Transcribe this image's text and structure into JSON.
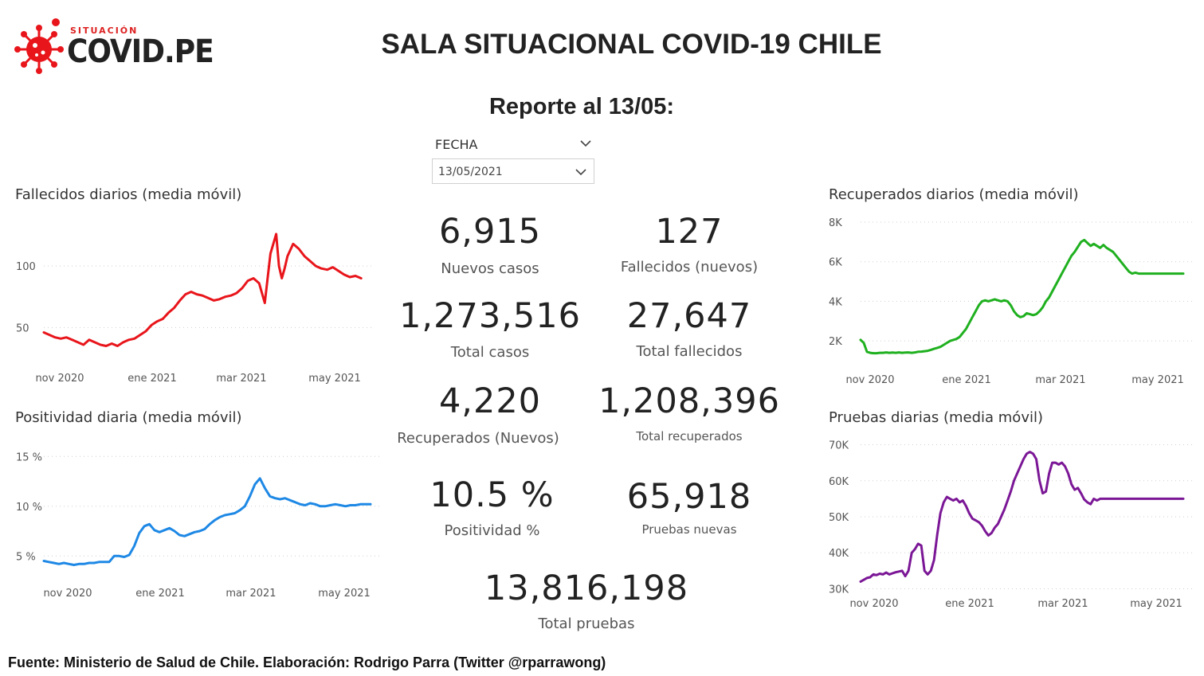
{
  "header": {
    "logo_small": "SITUACIÓN",
    "logo_big": "COVID.PE",
    "title": "SALA SITUACIONAL COVID-19 CHILE",
    "report": "Reporte al 13/05:"
  },
  "slicer": {
    "label": "FECHA",
    "value": "13/05/2021"
  },
  "kpis": {
    "nuevos_casos": {
      "value": "6,915",
      "label": "Nuevos casos"
    },
    "fallecidos_nuevos": {
      "value": "127",
      "label": "Fallecidos (nuevos)"
    },
    "total_casos": {
      "value": "1,273,516",
      "label": "Total casos"
    },
    "total_fallecidos": {
      "value": "27,647",
      "label": "Total fallecidos"
    },
    "recuperados_nuevos": {
      "value": "4,220",
      "label": "Recuperados (Nuevos)"
    },
    "total_recuperados": {
      "value": "1,208,396",
      "label": "Total recuperados"
    },
    "positividad": {
      "value": "10.5 %",
      "label": "Positividad %"
    },
    "pruebas_nuevas": {
      "value": "65,918",
      "label": "Pruebas nuevas"
    },
    "total_pruebas": {
      "value": "13,816,198",
      "label": "Total pruebas"
    }
  },
  "footer": "Fuente: Ministerio de Salud de Chile. Elaboración: Rodrigo Parra (Twitter @rparrawong)",
  "chart_data": [
    {
      "id": "fallecidos",
      "type": "line",
      "title": "Fallecidos diarios (media móvil)",
      "color": "#e8151b",
      "xticks": [
        "nov 2020",
        "ene 2021",
        "mar 2021",
        "may 2021"
      ],
      "yticks": [
        "100",
        "50"
      ],
      "ytick_values": [
        100,
        50
      ],
      "ylim": [
        25,
        135
      ],
      "x": [
        0,
        4,
        8,
        12,
        16,
        20,
        24,
        28,
        32,
        36,
        40,
        44,
        48,
        52,
        56,
        60,
        64,
        68,
        72,
        76,
        80,
        84,
        88,
        92,
        96,
        100,
        104,
        108,
        112,
        116,
        120,
        124,
        128,
        132,
        136,
        140,
        144,
        148,
        152,
        156,
        160,
        164,
        166,
        168,
        170,
        172,
        176,
        180,
        184,
        188,
        192,
        196,
        200,
        204,
        208,
        212,
        216,
        220,
        224
      ],
      "y": [
        46,
        44,
        42,
        41,
        42,
        40,
        38,
        36,
        40,
        38,
        36,
        35,
        37,
        35,
        38,
        40,
        41,
        44,
        47,
        52,
        55,
        57,
        62,
        66,
        72,
        77,
        79,
        77,
        76,
        74,
        72,
        73,
        75,
        76,
        78,
        82,
        88,
        90,
        86,
        70,
        110,
        126,
        100,
        90,
        98,
        108,
        118,
        114,
        108,
        104,
        100,
        98,
        97,
        99,
        96,
        93,
        91,
        92,
        90
      ]
    },
    {
      "id": "positividad",
      "type": "line",
      "title": "Positividad diaria (media móvil)",
      "color": "#1e88e5",
      "xticks": [
        "nov 2020",
        "ene 2021",
        "mar 2021",
        "may 2021"
      ],
      "yticks": [
        "15 %",
        "10 %",
        "5 %"
      ],
      "ytick_values": [
        15,
        10,
        5
      ],
      "ylim": [
        3.5,
        15.5
      ],
      "x": [
        0,
        6,
        12,
        18,
        24,
        30,
        36,
        42,
        48,
        54,
        60,
        66,
        72,
        78,
        84,
        90,
        96,
        102,
        108,
        114,
        120,
        126,
        132,
        138,
        144,
        150,
        156,
        162,
        168,
        174,
        180,
        186,
        192,
        198,
        204,
        210,
        216,
        222,
        228,
        234,
        240,
        246,
        252,
        258,
        264,
        270,
        276,
        282,
        288,
        294,
        300,
        306,
        312,
        318,
        324,
        330,
        336,
        342,
        348,
        354,
        360,
        366,
        372,
        378,
        384,
        390
      ],
      "y": [
        4.5,
        4.4,
        4.3,
        4.2,
        4.3,
        4.2,
        4.1,
        4.2,
        4.2,
        4.3,
        4.3,
        4.4,
        4.4,
        4.4,
        5.0,
        5.0,
        4.9,
        5.1,
        6.0,
        7.3,
        8.0,
        8.2,
        7.6,
        7.4,
        7.6,
        7.8,
        7.5,
        7.1,
        7.0,
        7.2,
        7.4,
        7.5,
        7.7,
        8.2,
        8.6,
        8.9,
        9.1,
        9.2,
        9.3,
        9.6,
        10.0,
        11.0,
        12.2,
        12.8,
        11.8,
        11.0,
        10.8,
        10.7,
        10.8,
        10.6,
        10.4,
        10.2,
        10.1,
        10.3,
        10.2,
        10.0,
        10.0,
        10.1,
        10.2,
        10.1,
        10.0,
        10.1,
        10.1,
        10.2,
        10.2,
        10.2
      ]
    },
    {
      "id": "recuperados",
      "type": "line",
      "title": "Recuperados diarios (media móvil)",
      "color": "#1fb01f",
      "xticks": [
        "nov 2020",
        "ene 2021",
        "mar 2021",
        "may 2021"
      ],
      "yticks": [
        "8K",
        "6K",
        "4K",
        "2K"
      ],
      "ytick_values": [
        8000,
        6000,
        4000,
        2000
      ],
      "ylim": [
        800,
        8200
      ],
      "x": [
        0,
        4,
        8,
        12,
        16,
        20,
        24,
        28,
        32,
        36,
        40,
        44,
        48,
        52,
        56,
        60,
        64,
        68,
        72,
        76,
        80,
        84,
        88,
        92,
        96,
        100,
        104,
        108,
        112,
        116,
        120,
        124,
        128,
        132,
        136,
        140,
        144,
        148,
        152,
        156,
        160,
        164,
        168,
        172,
        176,
        180,
        184,
        188,
        192,
        196,
        200,
        204,
        208,
        212,
        216,
        220,
        224,
        228,
        232,
        236,
        240,
        244,
        248,
        252,
        256,
        260,
        264,
        268,
        272,
        276,
        280,
        284,
        288,
        292,
        296,
        300,
        304,
        308,
        312,
        316,
        320,
        324,
        328,
        332,
        336,
        340,
        344,
        348,
        352,
        356,
        360,
        364,
        368,
        372,
        376,
        380,
        384,
        388,
        392,
        396,
        400,
        404
      ],
      "y": [
        2050,
        1900,
        1450,
        1400,
        1380,
        1380,
        1400,
        1400,
        1420,
        1400,
        1410,
        1400,
        1420,
        1400,
        1410,
        1420,
        1400,
        1420,
        1450,
        1460,
        1480,
        1500,
        1550,
        1600,
        1650,
        1700,
        1800,
        1900,
        2000,
        2050,
        2100,
        2200,
        2400,
        2600,
        2900,
        3200,
        3500,
        3800,
        4000,
        4050,
        4000,
        4050,
        4100,
        4050,
        4000,
        4050,
        4000,
        3800,
        3500,
        3300,
        3200,
        3250,
        3400,
        3350,
        3300,
        3350,
        3500,
        3700,
        4000,
        4200,
        4500,
        4800,
        5100,
        5400,
        5700,
        6000,
        6300,
        6500,
        6750,
        7000,
        7100,
        6950,
        6800,
        6900,
        6800,
        6700,
        6850,
        6700,
        6600,
        6500,
        6300,
        6100,
        5900,
        5700,
        5500,
        5400,
        5450,
        5400,
        5400,
        5400,
        5400,
        5400,
        5400,
        5400,
        5400,
        5400,
        5400,
        5400,
        5400,
        5400,
        5400,
        5400
      ]
    },
    {
      "id": "pruebas",
      "type": "line",
      "title": "Pruebas diarias (media móvil)",
      "color": "#7b1796",
      "xticks": [
        "nov 2020",
        "ene 2021",
        "mar 2021",
        "may 2021"
      ],
      "yticks": [
        "70K",
        "60K",
        "50K",
        "40K",
        "30K"
      ],
      "ytick_values": [
        70000,
        60000,
        50000,
        40000,
        30000
      ],
      "ylim": [
        29000,
        71000
      ],
      "x": [
        0,
        4,
        8,
        12,
        16,
        20,
        24,
        28,
        32,
        36,
        40,
        44,
        48,
        52,
        56,
        60,
        64,
        68,
        72,
        76,
        80,
        84,
        88,
        92,
        96,
        100,
        104,
        108,
        112,
        116,
        120,
        124,
        128,
        132,
        136,
        140,
        144,
        148,
        152,
        156,
        160,
        164,
        168,
        172,
        176,
        180,
        184,
        188,
        192,
        196,
        200,
        204,
        208,
        212,
        216,
        220,
        224,
        228,
        232,
        236,
        240,
        244,
        248,
        252,
        256,
        260,
        264,
        268,
        272,
        276,
        280,
        284,
        288,
        292,
        296,
        300,
        304,
        308,
        312,
        316,
        320,
        324,
        328,
        332,
        336,
        340,
        344,
        348,
        352,
        356,
        360,
        364,
        368,
        372,
        376,
        380,
        384,
        388,
        392,
        396,
        400,
        404
      ],
      "y": [
        32000,
        32500,
        33000,
        33200,
        34000,
        33800,
        34200,
        34000,
        34500,
        34000,
        34300,
        34600,
        34800,
        35000,
        33500,
        35000,
        40000,
        41000,
        42500,
        42000,
        35000,
        34000,
        35000,
        38000,
        45000,
        51000,
        54000,
        55500,
        55000,
        54500,
        55000,
        54000,
        54500,
        53000,
        51000,
        49500,
        49000,
        48500,
        47500,
        46000,
        44800,
        45500,
        47000,
        48000,
        50000,
        52000,
        54500,
        57000,
        60000,
        62000,
        64000,
        66000,
        67500,
        68000,
        67500,
        66000,
        60000,
        56500,
        57000,
        62000,
        65000,
        65000,
        64500,
        65000,
        64000,
        62000,
        59000,
        57500,
        58000,
        56500,
        54800,
        54000,
        53500,
        55000,
        54500,
        55000,
        55000,
        55000,
        55000,
        55000,
        55000,
        55000,
        55000,
        55000,
        55000,
        55000,
        55000,
        55000,
        55000,
        55000,
        55000,
        55000,
        55000,
        55000,
        55000,
        55000,
        55000,
        55000,
        55000,
        55000,
        55000,
        55000
      ]
    }
  ]
}
